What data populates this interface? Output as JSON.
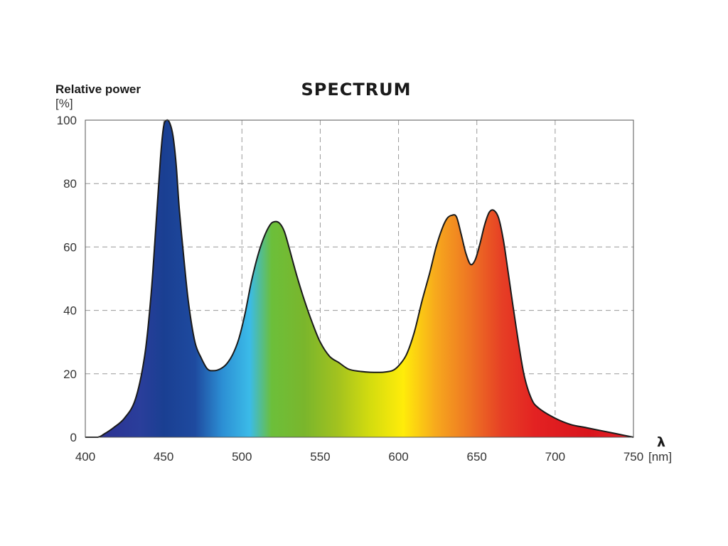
{
  "chart_data": {
    "type": "area",
    "title": "SPECTRUM",
    "ylabel": "Relative power",
    "ylabel_unit": "[%]",
    "xlabel": "λ",
    "xlabel_unit": "[nm]",
    "xlim": [
      400,
      750
    ],
    "ylim": [
      0,
      100
    ],
    "x_ticks": [
      400,
      450,
      500,
      550,
      600,
      650,
      700,
      750
    ],
    "y_ticks": [
      0,
      20,
      40,
      60,
      80,
      100
    ],
    "grid": true,
    "series": [
      {
        "x": [
          400,
          408,
          412,
          418,
          425,
          432,
          438,
          442,
          445,
          448,
          450,
          452,
          454,
          456,
          458,
          460,
          463,
          466,
          470,
          474,
          478,
          482,
          486,
          490,
          494,
          498,
          502,
          506,
          510,
          514,
          518,
          521,
          524,
          527,
          530,
          535,
          540,
          545,
          550,
          556,
          562,
          568,
          575,
          582,
          590,
          596,
          600,
          605,
          610,
          615,
          620,
          624,
          628,
          631,
          634,
          637,
          640,
          643,
          646,
          649,
          652,
          655,
          658,
          661,
          664,
          667,
          670,
          675,
          680,
          685,
          690,
          700,
          710,
          720,
          730,
          740,
          750
        ],
        "y": [
          0,
          0,
          1,
          3,
          6,
          12,
          26,
          45,
          66,
          88,
          98,
          100,
          99,
          95,
          86,
          72,
          56,
          42,
          30,
          25,
          21.5,
          21,
          21.5,
          23,
          26,
          31,
          39,
          49,
          57,
          63,
          67,
          68,
          67.5,
          65,
          60,
          51,
          43,
          36,
          30,
          25.5,
          23.5,
          21.5,
          20.8,
          20.5,
          20.5,
          21,
          22.5,
          26,
          33,
          43,
          52,
          60,
          66,
          69,
          70,
          69.5,
          64,
          58,
          54.5,
          56,
          61,
          67,
          71,
          71.5,
          69,
          62,
          52,
          35,
          20,
          12,
          9,
          6,
          4,
          3,
          2,
          1,
          0
        ]
      }
    ]
  }
}
